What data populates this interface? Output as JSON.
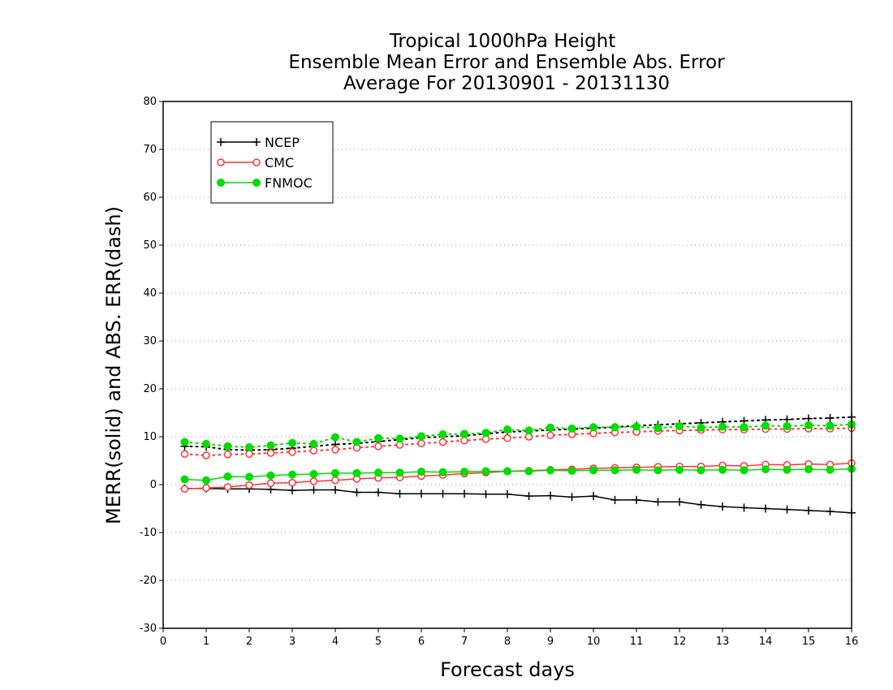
{
  "chart_data": {
    "type": "line",
    "title": [
      "Tropical 1000hPa Height",
      "Ensemble Mean Error and Ensemble Abs. Error",
      "Average For 20130901 - 20131130"
    ],
    "xlabel": "Forecast days",
    "ylabel": "MERR(solid) and ABS. ERR(dash)",
    "xlim": [
      0,
      16
    ],
    "ylim": [
      -30,
      80
    ],
    "xticks": [
      0,
      1,
      2,
      3,
      4,
      5,
      6,
      7,
      8,
      9,
      10,
      11,
      12,
      13,
      14,
      15,
      16
    ],
    "yticks": [
      -30,
      -20,
      -10,
      0,
      10,
      20,
      30,
      40,
      50,
      60,
      70,
      80
    ],
    "grid": "horizontal dotted",
    "legend_position": "top-left",
    "x": [
      0.5,
      1,
      1.5,
      2,
      2.5,
      3,
      3.5,
      4,
      4.5,
      5,
      5.5,
      6,
      6.5,
      7,
      7.5,
      8,
      8.5,
      9,
      9.5,
      10,
      10.5,
      11,
      11.5,
      12,
      12.5,
      13,
      13.5,
      14,
      14.5,
      15,
      15.5,
      16
    ],
    "series": [
      {
        "name": "NCEP",
        "color": "#000000",
        "marker": "plus",
        "merr": [
          -0.8,
          -0.8,
          -0.9,
          -0.9,
          -1.0,
          -1.2,
          -1.1,
          -1.1,
          -1.6,
          -1.6,
          -1.9,
          -1.9,
          -1.9,
          -1.9,
          -2.0,
          -2.0,
          -2.4,
          -2.3,
          -2.6,
          -2.4,
          -3.2,
          -3.2,
          -3.6,
          -3.6,
          -4.2,
          -4.6,
          -4.8,
          -5.0,
          -5.2,
          -5.4,
          -5.6,
          -5.9
        ],
        "abs_err": [
          8.0,
          7.9,
          7.3,
          7.2,
          7.3,
          7.6,
          8.0,
          8.4,
          8.6,
          9.0,
          9.4,
          9.8,
          10.0,
          10.2,
          10.6,
          11.0,
          11.2,
          11.4,
          11.6,
          11.8,
          12.0,
          12.3,
          12.5,
          12.7,
          12.9,
          13.1,
          13.3,
          13.5,
          13.6,
          13.8,
          13.9,
          14.1
        ]
      },
      {
        "name": "CMC",
        "color": "#ff3333",
        "marker": "open-circle",
        "merr": [
          -0.9,
          -0.7,
          -0.5,
          -0.1,
          0.3,
          0.4,
          0.7,
          0.9,
          1.2,
          1.4,
          1.5,
          1.8,
          2.0,
          2.3,
          2.5,
          2.8,
          2.9,
          3.1,
          3.2,
          3.4,
          3.5,
          3.6,
          3.7,
          3.8,
          3.8,
          4.0,
          3.9,
          4.2,
          4.1,
          4.3,
          4.2,
          4.5
        ],
        "abs_err": [
          6.4,
          6.1,
          6.3,
          6.4,
          6.6,
          6.8,
          7.1,
          7.3,
          7.7,
          8.0,
          8.3,
          8.6,
          8.9,
          9.2,
          9.5,
          9.7,
          10.0,
          10.3,
          10.5,
          10.7,
          10.9,
          11.0,
          11.2,
          11.3,
          11.4,
          11.5,
          11.5,
          11.6,
          11.6,
          11.7,
          11.7,
          11.8
        ]
      },
      {
        "name": "FNMOC",
        "color": "#00dd00",
        "marker": "filled-circle",
        "merr": [
          1.1,
          0.9,
          1.7,
          1.6,
          1.9,
          2.1,
          2.2,
          2.4,
          2.4,
          2.5,
          2.5,
          2.7,
          2.6,
          2.7,
          2.8,
          2.8,
          2.8,
          3.0,
          2.9,
          3.0,
          3.0,
          3.1,
          3.0,
          3.1,
          3.0,
          3.1,
          3.0,
          3.2,
          3.1,
          3.2,
          3.1,
          3.3
        ],
        "abs_err": [
          8.9,
          8.5,
          8.0,
          7.8,
          8.2,
          8.7,
          8.5,
          9.9,
          8.9,
          9.7,
          9.6,
          10.1,
          10.5,
          10.6,
          10.8,
          11.5,
          11.3,
          11.9,
          11.7,
          12.0,
          12.0,
          12.1,
          11.8,
          12.2,
          11.9,
          12.1,
          12.0,
          12.3,
          12.2,
          12.4,
          12.3,
          12.6
        ]
      }
    ]
  }
}
